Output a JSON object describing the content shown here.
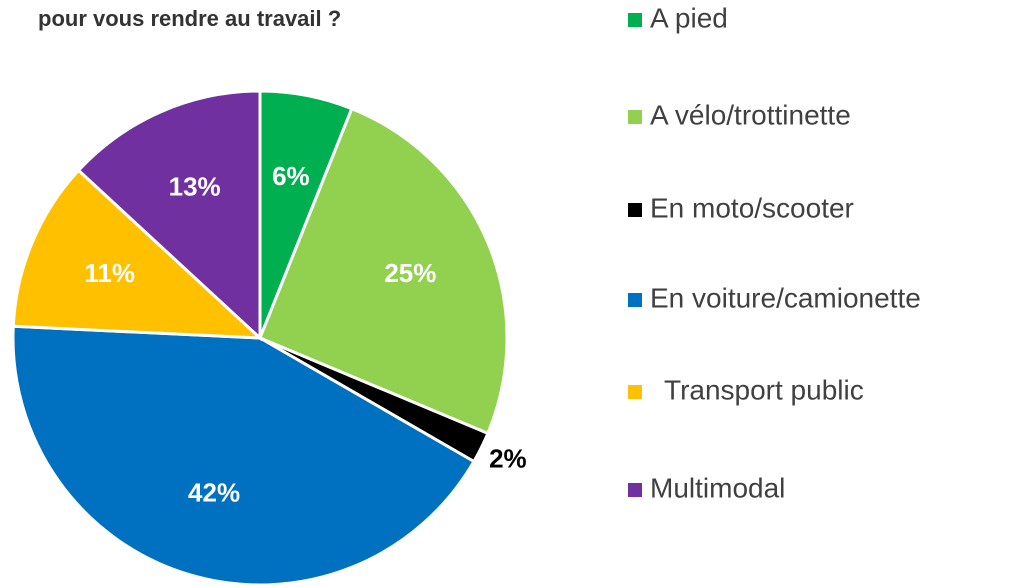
{
  "chart_data": {
    "type": "pie",
    "title": "pour vous rendre au travail ?",
    "categories": [
      "A pied",
      "A vélo/trottinette",
      "En moto/scooter",
      "En voiture/camionette",
      "Transport public",
      "Multimodal"
    ],
    "values": [
      6,
      25,
      2,
      42,
      11,
      13
    ],
    "value_labels": [
      "6%",
      "25%",
      "2%",
      "42%",
      "11%",
      "13%"
    ],
    "colors": [
      "#00b050",
      "#92d050",
      "#000000",
      "#0070c0",
      "#ffc000",
      "#7030a0"
    ],
    "legend": "right"
  }
}
